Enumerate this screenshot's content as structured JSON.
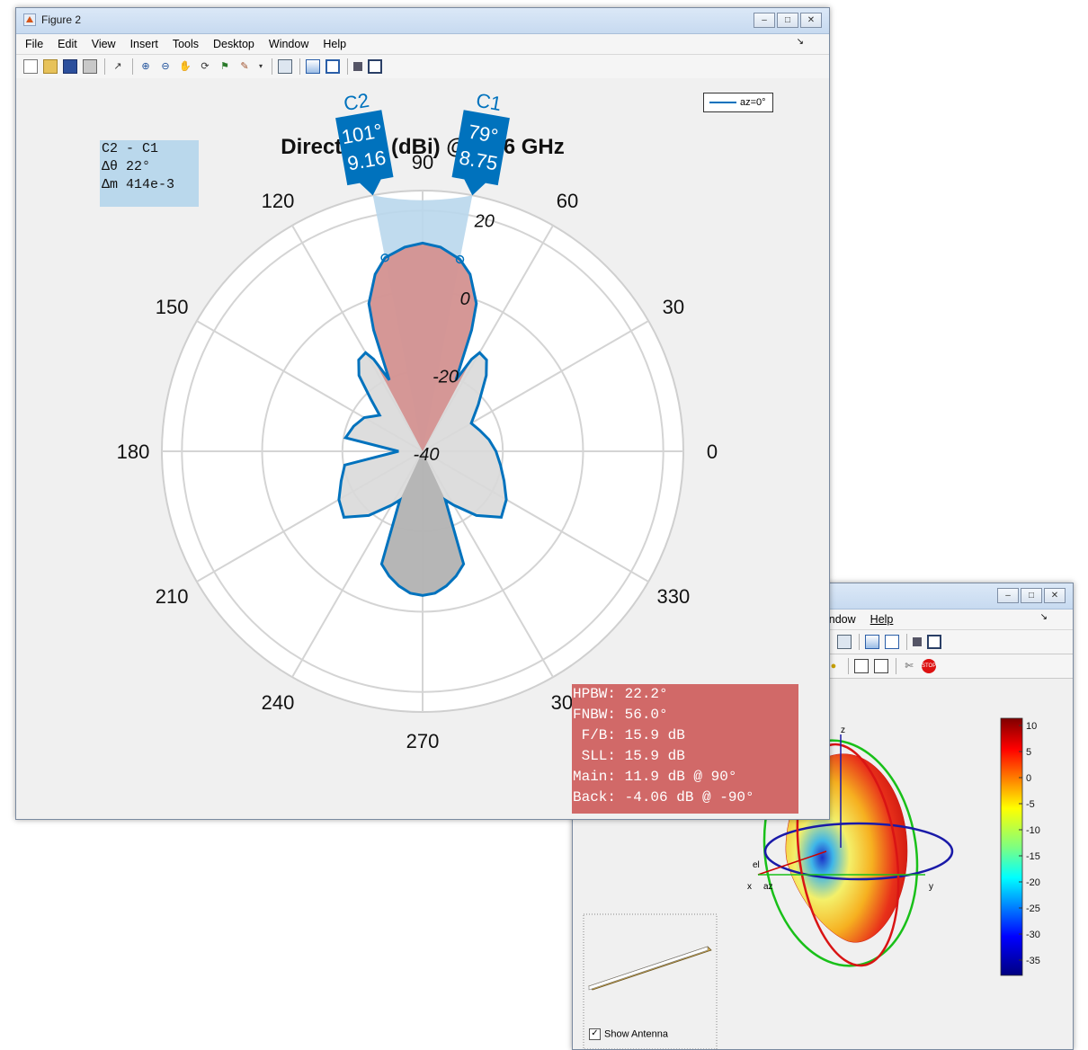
{
  "figure2": {
    "title": "Figure 2",
    "menu": [
      "File",
      "Edit",
      "View",
      "Insert",
      "Tools",
      "Desktop",
      "Window",
      "Help"
    ],
    "plot_title": "Directivity (dBi) @ 2.66 GHz",
    "legend": "az=0°",
    "cursor_c2": {
      "name": "C2",
      "angle": "101°",
      "value": "9.16"
    },
    "cursor_c1": {
      "name": "C1",
      "angle": "79°",
      "value": "8.75"
    },
    "delta": {
      "line1": "C2 - C1",
      "line2": "Δθ 22°",
      "line3": "Δm 414e-3"
    },
    "metrics": {
      "hpbw": "HPBW: 22.2°",
      "fnbw": "FNBW: 56.0°",
      "fb": " F/B: 15.9 dB",
      "sll": " SLL: 15.9 dB",
      "main": "Main: 11.9 dB @ 90°",
      "back": "Back: -4.06 dB @ -90°"
    },
    "accent_color": "#0072bd",
    "metrics_color": "#d16968"
  },
  "figure3": {
    "menu": [
      "indow",
      "Help"
    ],
    "axis_labels": {
      "z": "z",
      "x": "x",
      "y": "y",
      "el": "el",
      "az": "az"
    },
    "colorbar_ticks": [
      "10",
      "5",
      "0",
      "-5",
      "-10",
      "-15",
      "-20",
      "-25",
      "-30",
      "-35"
    ],
    "show_antenna_label": "Show Antenna"
  },
  "chart_data": {
    "type": "polar",
    "title": "Directivity (dBi) @ 2.66 GHz",
    "angle_ticks": [
      "0",
      "30",
      "60",
      "90",
      "120",
      "150",
      "180",
      "210",
      "240",
      "270",
      "300",
      "330"
    ],
    "radial_ticks": [
      "-40",
      "-20",
      "0",
      "20"
    ],
    "rlim": [
      -40,
      25
    ],
    "series": [
      {
        "name": "az=0°",
        "theta_deg": [
          0,
          10,
          20,
          30,
          40,
          50,
          55,
          60,
          62,
          65,
          68,
          70,
          75,
          79,
          85,
          90,
          95,
          101,
          105,
          110,
          112,
          115,
          118,
          120,
          125,
          130,
          135,
          140,
          145,
          150,
          160,
          170,
          180,
          190,
          200,
          210,
          220,
          230,
          240,
          245,
          250,
          255,
          260,
          265,
          270,
          275,
          280,
          285,
          290,
          295,
          300,
          310,
          320,
          330,
          340,
          350
        ],
        "value_dbi": [
          -21.7,
          -23.2,
          -24.8,
          -26.0,
          -21.9,
          -15.3,
          -12.2,
          -11.6,
          -14.0,
          -20.4,
          -7.4,
          -0.8,
          5.7,
          8.75,
          11.1,
          11.9,
          11.1,
          9.16,
          5.7,
          -0.8,
          -7.4,
          -20.4,
          -14.0,
          -11.6,
          -12.2,
          -15.3,
          -21.9,
          -26.0,
          -24.8,
          -23.2,
          -21.7,
          -20.5,
          -34.0,
          -20.3,
          -18.4,
          -15.9,
          -14.4,
          -19.1,
          -24.5,
          -26.6,
          -10.1,
          -7.8,
          -5.9,
          -4.5,
          -4.06,
          -4.5,
          -5.9,
          -7.8,
          -10.1,
          -26.6,
          -24.5,
          -19.1,
          -14.4,
          -15.9,
          -18.4,
          -20.3
        ]
      }
    ]
  }
}
